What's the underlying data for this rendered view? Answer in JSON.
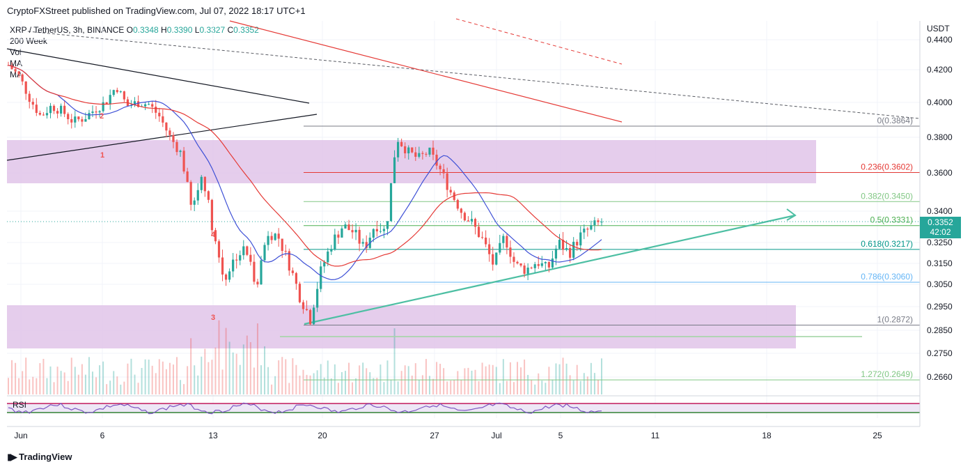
{
  "header": {
    "published_by": "CryptoFXStreet published on TradingView.com, Jul 07, 2022 18:17 UTC+1"
  },
  "legend": {
    "symbol": "XRP / TetherUS, 3h, BINANCE",
    "open_label": "O",
    "open": "0.3348",
    "high_label": "H",
    "high": "0.3390",
    "low_label": "L",
    "low": "0.3327",
    "close_label": "C",
    "close": "0.3352",
    "line2": "200 Week",
    "line3": "Vol",
    "line4": "MA",
    "line5": "MA"
  },
  "rsi_label": "RSI",
  "price_badge": {
    "price": "0.3352",
    "countdown": "42:02"
  },
  "footer": {
    "brand": "TradingView"
  },
  "colors": {
    "up": "#26a69a",
    "down": "#ef5350",
    "zone": "#e1c4e9",
    "ma_blue": "#3f51d6",
    "ma_red": "#e53935",
    "trendline": "#4dbfa3"
  },
  "chart_data": {
    "type": "candlestick",
    "currency": "USDT",
    "y_ticks": [
      "0.4400",
      "0.4200",
      "0.4000",
      "0.3800",
      "0.3600",
      "0.3400",
      "0.3250",
      "0.3150",
      "0.3050",
      "0.2950",
      "0.2850",
      "0.2750",
      "0.2660"
    ],
    "x_ticks": [
      "Jun",
      "6",
      "13",
      "20",
      "27",
      "Jul",
      "5",
      "11",
      "18",
      "25"
    ],
    "fib_levels": [
      {
        "label": "0(0.3864)",
        "value": 0.3864,
        "color": "#787b86"
      },
      {
        "label": "0.236(0.3602)",
        "value": 0.3602,
        "color": "#e53935"
      },
      {
        "label": "0.382(0.3450)",
        "value": 0.345,
        "color": "#81c784"
      },
      {
        "label": "0.5(0.3331)",
        "value": 0.3331,
        "color": "#4caf50"
      },
      {
        "label": "0.618(0.3217)",
        "value": 0.3217,
        "color": "#009688"
      },
      {
        "label": "0.786(0.3060)",
        "value": 0.306,
        "color": "#64b5f6"
      },
      {
        "label": "1(0.2872)",
        "value": 0.2872,
        "color": "#787b86"
      },
      {
        "label": "1.272(0.2649)",
        "value": 0.2649,
        "color": "#81c784"
      }
    ],
    "wave_labels": [
      "1",
      "2",
      "3",
      "4"
    ],
    "zones": [
      {
        "from": 0.355,
        "to": 0.378
      },
      {
        "from": 0.277,
        "to": 0.296
      }
    ],
    "candles_close_path": [
      0.423,
      0.416,
      0.402,
      0.392,
      0.398,
      0.395,
      0.389,
      0.391,
      0.396,
      0.4,
      0.41,
      0.398,
      0.4,
      0.399,
      0.392,
      0.38,
      0.371,
      0.34,
      0.36,
      0.33,
      0.307,
      0.318,
      0.322,
      0.305,
      0.33,
      0.328,
      0.315,
      0.3,
      0.29,
      0.312,
      0.325,
      0.333,
      0.33,
      0.322,
      0.334,
      0.33,
      0.38,
      0.372,
      0.368,
      0.372,
      0.362,
      0.35,
      0.34,
      0.334,
      0.326,
      0.314,
      0.328,
      0.314,
      0.312,
      0.316,
      0.312,
      0.325,
      0.32,
      0.328,
      0.332,
      0.335
    ]
  }
}
